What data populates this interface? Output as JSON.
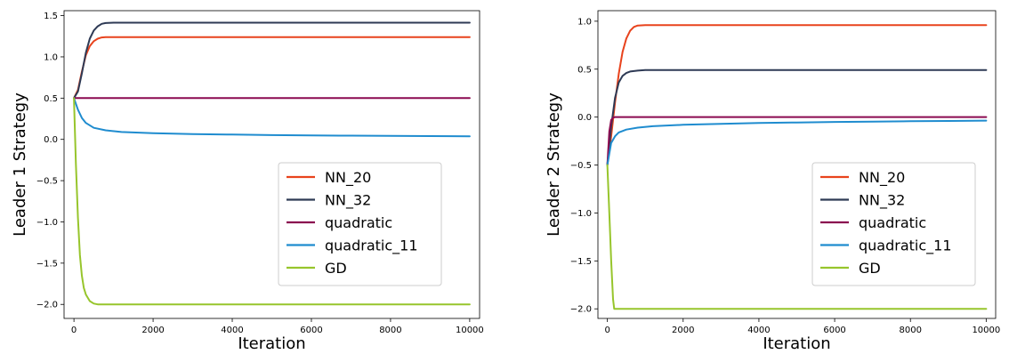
{
  "chart_data": [
    {
      "type": "line",
      "xlabel": "Iteration",
      "ylabel": "Leader 1 Strategy",
      "xlim": [
        -250,
        10250
      ],
      "ylim": [
        -2.17,
        1.56
      ],
      "x_ticks": [
        0,
        2000,
        4000,
        6000,
        8000,
        10000
      ],
      "x_tick_labels": [
        "0",
        "2000",
        "4000",
        "6000",
        "8000",
        "10000"
      ],
      "y_ticks": [
        1.5,
        1.0,
        0.5,
        0.0,
        -0.5,
        -1.0,
        -1.5,
        -2.0
      ],
      "y_tick_labels": [
        "1.5",
        "1.0",
        "0.5",
        "0.0",
        "−0.5",
        "−1.0",
        "−1.5",
        "−2.0"
      ],
      "grid": false,
      "legend_position": "lower-right",
      "series": [
        {
          "name": "NN_20",
          "color": "#e8431d",
          "x": [
            0,
            100,
            200,
            300,
            400,
            500,
            600,
            700,
            800,
            1000,
            1500,
            10000
          ],
          "y": [
            0.5,
            0.6,
            0.82,
            1.02,
            1.13,
            1.19,
            1.22,
            1.235,
            1.24,
            1.24,
            1.24,
            1.24
          ]
        },
        {
          "name": "NN_32",
          "color": "#2e3a55",
          "x": [
            0,
            100,
            200,
            300,
            400,
            500,
            600,
            700,
            800,
            1000,
            1500,
            10000
          ],
          "y": [
            0.5,
            0.58,
            0.8,
            1.05,
            1.22,
            1.32,
            1.37,
            1.4,
            1.41,
            1.415,
            1.415,
            1.415
          ]
        },
        {
          "name": "quadratic",
          "color": "#8b0a50",
          "x": [
            0,
            10000
          ],
          "y": [
            0.5,
            0.5
          ]
        },
        {
          "name": "quadratic_11",
          "color": "#1f8ccf",
          "x": [
            0,
            100,
            200,
            300,
            500,
            800,
            1200,
            2000,
            3000,
            4000,
            5000,
            6000,
            7000,
            8000,
            9000,
            10000
          ],
          "y": [
            0.5,
            0.36,
            0.26,
            0.2,
            0.14,
            0.11,
            0.09,
            0.075,
            0.065,
            0.058,
            0.052,
            0.048,
            0.045,
            0.042,
            0.04,
            0.037
          ]
        },
        {
          "name": "GD",
          "color": "#97c52c",
          "x": [
            0,
            50,
            100,
            150,
            200,
            250,
            300,
            400,
            500,
            600,
            800,
            1000,
            10000
          ],
          "y": [
            0.5,
            -0.3,
            -0.95,
            -1.4,
            -1.65,
            -1.8,
            -1.88,
            -1.96,
            -1.99,
            -2.0,
            -2.0,
            -2.0,
            -2.0
          ]
        }
      ]
    },
    {
      "type": "line",
      "xlabel": "Iteration",
      "ylabel": "Leader 2 Strategy",
      "xlim": [
        -250,
        10250
      ],
      "ylim": [
        -2.1,
        1.11
      ],
      "x_ticks": [
        0,
        2000,
        4000,
        6000,
        8000,
        10000
      ],
      "x_tick_labels": [
        "0",
        "2000",
        "4000",
        "6000",
        "8000",
        "10000"
      ],
      "y_ticks": [
        1.0,
        0.5,
        0.0,
        -0.5,
        -1.0,
        -1.5,
        -2.0
      ],
      "y_tick_labels": [
        "1.0",
        "0.5",
        "0.0",
        "−0.5",
        "−1.0",
        "−1.5",
        "−2.0"
      ],
      "grid": false,
      "legend_position": "lower-right",
      "series": [
        {
          "name": "NN_20",
          "color": "#e8431d",
          "x": [
            0,
            100,
            200,
            300,
            400,
            500,
            600,
            700,
            800,
            1000,
            1200,
            1500,
            10000
          ],
          "y": [
            -0.5,
            -0.2,
            0.15,
            0.45,
            0.68,
            0.82,
            0.9,
            0.94,
            0.955,
            0.96,
            0.96,
            0.96,
            0.96
          ]
        },
        {
          "name": "NN_32",
          "color": "#2e3a55",
          "x": [
            0,
            100,
            200,
            300,
            400,
            500,
            600,
            800,
            1000,
            1500,
            10000
          ],
          "y": [
            -0.5,
            -0.1,
            0.2,
            0.36,
            0.43,
            0.46,
            0.475,
            0.485,
            0.49,
            0.49,
            0.49
          ]
        },
        {
          "name": "quadratic",
          "color": "#8b0a50",
          "x": [
            0,
            50,
            100,
            150,
            200,
            10000
          ],
          "y": [
            -0.5,
            -0.15,
            -0.03,
            -0.005,
            0.0,
            0.0
          ]
        },
        {
          "name": "quadratic_11",
          "color": "#1f8ccf",
          "x": [
            0,
            100,
            200,
            300,
            500,
            800,
            1200,
            2000,
            3000,
            4000,
            5000,
            6000,
            7000,
            8000,
            9000,
            10000
          ],
          "y": [
            -0.5,
            -0.27,
            -0.2,
            -0.16,
            -0.13,
            -0.11,
            -0.095,
            -0.08,
            -0.07,
            -0.062,
            -0.056,
            -0.051,
            -0.047,
            -0.043,
            -0.04,
            -0.037
          ]
        },
        {
          "name": "GD",
          "color": "#97c52c",
          "x": [
            0,
            50,
            100,
            150,
            180,
            10000
          ],
          "y": [
            -0.5,
            -1.0,
            -1.5,
            -1.9,
            -2.0,
            -2.0
          ]
        }
      ]
    }
  ]
}
